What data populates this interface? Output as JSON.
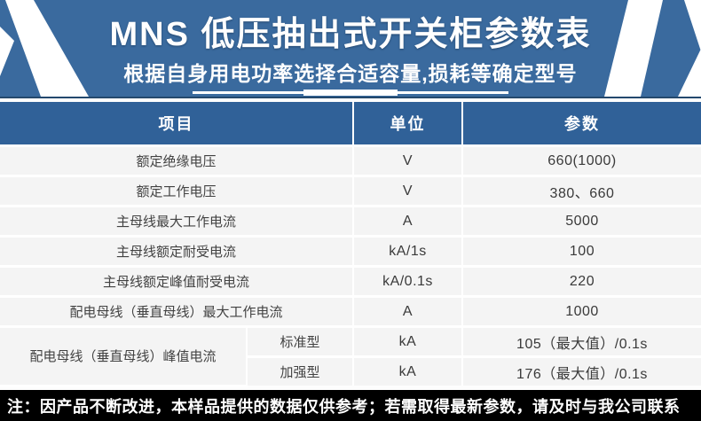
{
  "banner": {
    "title": "MNS 低压抽出式开关柜参数表",
    "subtitle": "根据自身用电功率选择合适容量,损耗等确定型号"
  },
  "colors": {
    "banner_blue": "#3a6a9e",
    "banner_border_dark": "#24496e",
    "header_blue": "#306198",
    "row_bg": "#f4f4f4",
    "note_bg": "#000000",
    "text_white": "#ffffff",
    "text_dark": "#424242"
  },
  "table": {
    "headers": {
      "item": "项目",
      "unit": "单位",
      "value": "参数"
    },
    "rows": [
      {
        "item": "额定绝缘电压",
        "unit": "V",
        "value": "660(1000)"
      },
      {
        "item": "额定工作电压",
        "unit": "V",
        "value": "380、660"
      },
      {
        "item": "主母线最大工作电流",
        "unit": "A",
        "value": "5000"
      },
      {
        "item": "主母线额定耐受电流",
        "unit": "kA/1s",
        "value": "100"
      },
      {
        "item": "主母线额定峰值耐受电流",
        "unit": "kA/0.1s",
        "value": "220"
      },
      {
        "item": "配电母线（垂直母线）最大工作电流",
        "unit": "A",
        "value": "1000"
      }
    ],
    "group": {
      "item": "配电母线（垂直母线）峰值电流",
      "variants": [
        {
          "type": "标准型",
          "unit": "kA",
          "value": "105（最大值）/0.1s"
        },
        {
          "type": "加强型",
          "unit": "kA",
          "value": "176（最大值）/0.1s"
        }
      ]
    }
  },
  "footer": {
    "note": "注：因产品不断改进，本样品提供的数据仅供参考；若需取得最新参数，请及时与我公司联系"
  }
}
